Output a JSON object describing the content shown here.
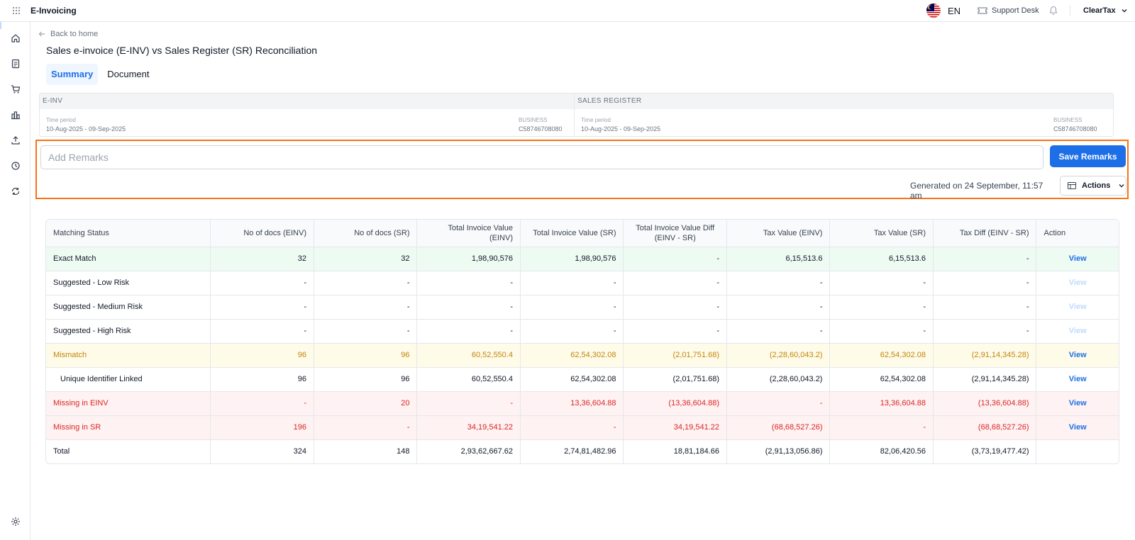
{
  "header": {
    "app_title": "E-Invoicing",
    "language": "EN",
    "support_label": "Support Desk",
    "user_label": "ClearTax"
  },
  "nav": {
    "back_label": "Back to home",
    "page_title": "Sales e-invoice (E-INV) vs Sales Register (SR) Reconciliation",
    "tabs": [
      {
        "label": "Summary",
        "active": true
      },
      {
        "label": "Document",
        "active": false
      }
    ]
  },
  "cards": [
    {
      "title": "E-INV",
      "period_label": "Time period",
      "period": "10-Aug-2025 - 09-Sep-2025",
      "business_label": "BUSINESS",
      "business": "C58746708080"
    },
    {
      "title": "SALES REGISTER",
      "period_label": "Time period",
      "period": "10-Aug-2025 - 09-Sep-2025",
      "business_label": "BUSINESS",
      "business": "C58746708080"
    }
  ],
  "remarks": {
    "placeholder": "Add Remarks",
    "save_label": "Save Remarks",
    "generated_text": "Generated on 24 September, 11:57 am",
    "actions_label": "Actions"
  },
  "table": {
    "headers": [
      "Matching Status",
      "No of docs (EINV)",
      "No of docs (SR)",
      "Total Invoice Value (EINV)",
      "Total Invoice Value (SR)",
      "Total Invoice Value Diff (EINV - SR)",
      "Tax Value (EINV)",
      "Tax Value (SR)",
      "Tax Diff (EINV - SR)",
      "Action"
    ],
    "rows": [
      {
        "status": "Exact Match",
        "cells": [
          "32",
          "32",
          "1,98,90,576",
          "1,98,90,576",
          "-",
          "6,15,513.6",
          "6,15,513.6",
          "-"
        ],
        "action": "View"
      },
      {
        "status": "Suggested - Low Risk",
        "cells": [
          "-",
          "-",
          "-",
          "-",
          "-",
          "-",
          "-",
          "-"
        ],
        "action": "View"
      },
      {
        "status": "Suggested - Medium Risk",
        "cells": [
          "-",
          "-",
          "-",
          "-",
          "-",
          "-",
          "-",
          "-"
        ],
        "action": "View"
      },
      {
        "status": "Suggested - High Risk",
        "cells": [
          "-",
          "-",
          "-",
          "-",
          "-",
          "-",
          "-",
          "-"
        ],
        "action": "View"
      },
      {
        "status": "Mismatch",
        "cells": [
          "96",
          "96",
          "60,52,550.4",
          "62,54,302.08",
          "(2,01,751.68)",
          "(2,28,60,043.2)",
          "62,54,302.08",
          "(2,91,14,345.28)"
        ],
        "action": "View"
      },
      {
        "status": "Unique Identifier Linked",
        "cells": [
          "96",
          "96",
          "60,52,550.4",
          "62,54,302.08",
          "(2,01,751.68)",
          "(2,28,60,043.2)",
          "62,54,302.08",
          "(2,91,14,345.28)"
        ],
        "action": "View"
      },
      {
        "status": "Missing in EINV",
        "cells": [
          "-",
          "20",
          "-",
          "13,36,604.88",
          "(13,36,604.88)",
          "-",
          "13,36,604.88",
          "(13,36,604.88)"
        ],
        "action": "View"
      },
      {
        "status": "Missing in SR",
        "cells": [
          "196",
          "-",
          "34,19,541.22",
          "-",
          "34,19,541.22",
          "(68,68,527.26)",
          "-",
          "(68,68,527.26)"
        ],
        "action": "View"
      },
      {
        "status": "Total",
        "cells": [
          "324",
          "148",
          "2,93,62,667.62",
          "2,74,81,482.96",
          "18,81,184.66",
          "(2,91,13,056.86)",
          "82,06,420.56",
          "(3,73,19,477.42)"
        ],
        "action": ""
      }
    ]
  },
  "colors": {
    "accent": "#1d6fe8",
    "highlight": "#f97316",
    "match_bg": "#eefbf3",
    "mismatch_bg": "#fefce8",
    "missing_bg": "#fef2f2"
  }
}
